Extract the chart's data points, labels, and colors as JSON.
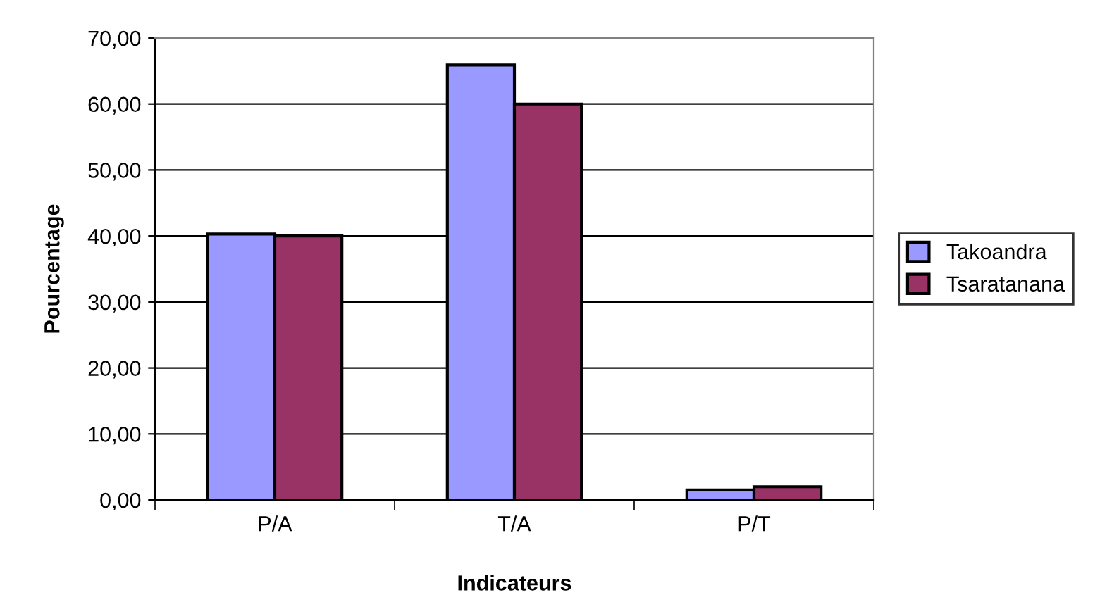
{
  "chart_data": {
    "type": "bar",
    "xlabel": "Indicateurs",
    "ylabel": "Pourcentage",
    "categories": [
      "P/A",
      "T/A",
      "P/T"
    ],
    "series": [
      {
        "name": "Takoandra",
        "color": "#9999ff",
        "values": [
          40.3,
          65.9,
          1.5
        ]
      },
      {
        "name": "Tsaratanana",
        "color": "#993366",
        "values": [
          40.0,
          60.0,
          2.0
        ]
      }
    ],
    "ylim": [
      0,
      70
    ],
    "yticks": [
      {
        "value": 0,
        "label": "0,00"
      },
      {
        "value": 10,
        "label": "10,00"
      },
      {
        "value": 20,
        "label": "20,00"
      },
      {
        "value": 30,
        "label": "30,00"
      },
      {
        "value": 40,
        "label": "40,00"
      },
      {
        "value": 50,
        "label": "50,00"
      },
      {
        "value": 60,
        "label": "60,00"
      },
      {
        "value": 70,
        "label": "70,00"
      }
    ],
    "grid": "y",
    "legend": "right"
  }
}
